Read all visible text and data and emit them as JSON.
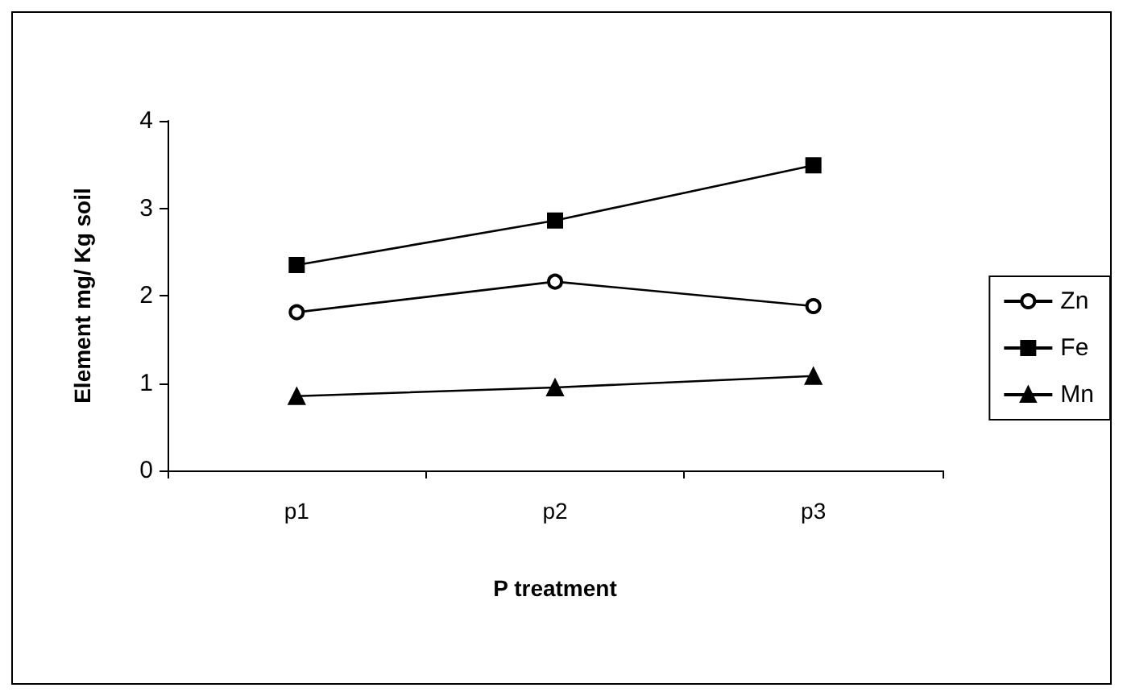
{
  "chart_data": {
    "type": "line",
    "xlabel": "P treatment",
    "ylabel": "Element mg/ Kg soil",
    "categories": [
      "p1",
      "p2",
      "p3"
    ],
    "series": [
      {
        "name": "Zn",
        "color": "#000000",
        "marker": "circle",
        "values": [
          1.81,
          2.16,
          1.88
        ]
      },
      {
        "name": "Fe",
        "color": "#000000",
        "marker": "square",
        "values": [
          2.35,
          2.86,
          3.49
        ]
      },
      {
        "name": "Mn",
        "color": "#000000",
        "marker": "triangle",
        "values": [
          0.85,
          0.95,
          1.08
        ]
      }
    ],
    "ylim": [
      0,
      4
    ],
    "yticks": [
      0,
      1,
      2,
      3,
      4
    ],
    "grid": false,
    "legend": "right",
    "line_style": "solid"
  }
}
